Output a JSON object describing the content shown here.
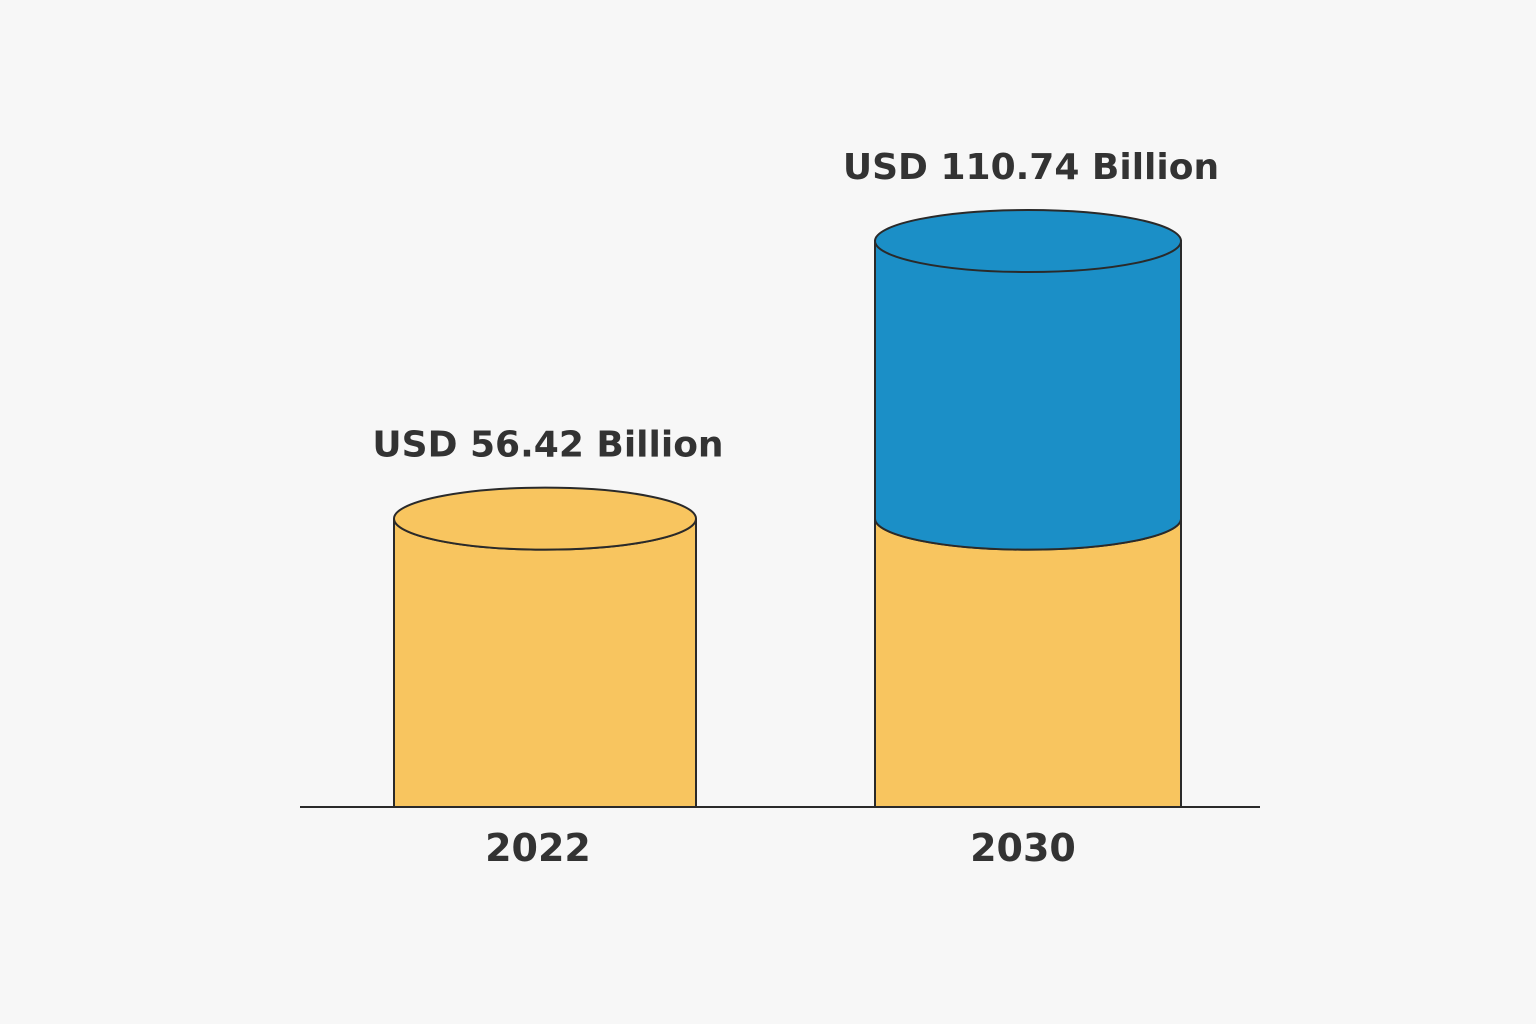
{
  "chart_data": {
    "type": "bar",
    "style": "cylinder",
    "categories": [
      "2022",
      "2030"
    ],
    "values": [
      56.42,
      110.74
    ],
    "value_labels": [
      "USD 56.42 Billion",
      "USD 110.74 Billion"
    ],
    "segments": [
      {
        "category": "2022",
        "base": 56.42,
        "increment": 0
      },
      {
        "category": "2030",
        "base": 56.42,
        "increment": 54.32
      }
    ],
    "title": "",
    "xlabel": "",
    "ylabel": "",
    "ylim": [
      0,
      110.74
    ],
    "grid": false,
    "legend": "none"
  },
  "colors": {
    "base_fill": "#f8c55f",
    "growth_fill": "#1b8fc7",
    "outline": "#2a2a2a",
    "text": "#333333",
    "background": "#f7f7f7"
  }
}
